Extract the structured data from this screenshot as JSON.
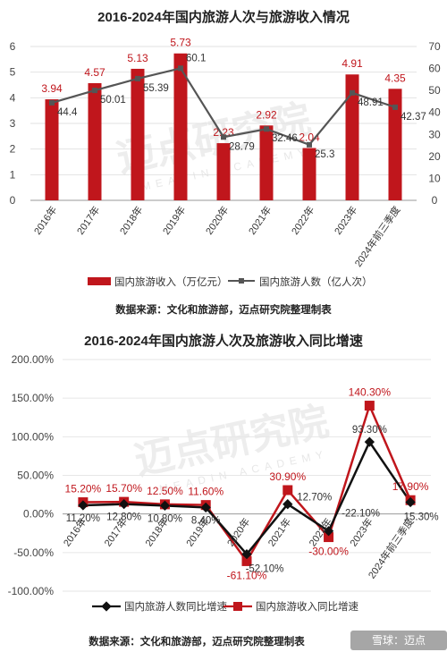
{
  "chart_data": [
    {
      "type": "bar",
      "title": "2016-2024年国内旅游人次与旅游收入情况",
      "categories": [
        "2016年",
        "2017年",
        "2018年",
        "2019年",
        "2020年",
        "2021年",
        "2022年",
        "2023年",
        "2024年前三季度"
      ],
      "series": [
        {
          "name": "国内旅游收入（万亿元）",
          "type": "bar",
          "axis": "left",
          "color": "#c0161c",
          "values": [
            3.94,
            4.57,
            5.13,
            5.73,
            2.23,
            2.92,
            2.04,
            4.91,
            4.35
          ],
          "labels": [
            "3.94",
            "4.57",
            "5.13",
            "5.73",
            "2.23",
            "2.92",
            "2.04",
            "4.91",
            "4.35"
          ]
        },
        {
          "name": "国内旅游人数（亿人次）",
          "type": "line",
          "axis": "right",
          "color": "#555555",
          "values": [
            44.4,
            50.01,
            55.39,
            60.1,
            28.79,
            32.46,
            25.3,
            48.91,
            42.37
          ],
          "labels": [
            "44.4",
            "50.01",
            "55.39",
            "60.1",
            "28.79",
            "32.46",
            "25.3",
            "48.91",
            "42.37"
          ]
        }
      ],
      "ylim_left": [
        0,
        6
      ],
      "yticks_left": [
        "0",
        "1",
        "2",
        "3",
        "4",
        "5",
        "6"
      ],
      "ylim_right": [
        0,
        70
      ],
      "yticks_right": [
        "0",
        "10",
        "20",
        "30",
        "40",
        "50",
        "60",
        "70"
      ],
      "legend": "bottom",
      "source": "数据来源：文化和旅游部，迈点研究院整理制表"
    },
    {
      "type": "line",
      "title": "2016-2024年国内旅游人次及旅游收入同比增速",
      "categories": [
        "2016年",
        "2017年",
        "2018年",
        "2019年",
        "2020年",
        "2021年",
        "2022年",
        "2023年",
        "2024年前三季度"
      ],
      "series": [
        {
          "name": "国内旅游人数同比增速",
          "color": "#111111",
          "marker": "diamond",
          "values": [
            11.2,
            12.8,
            10.8,
            8.4,
            -52.1,
            12.7,
            -22.1,
            93.3,
            15.3
          ],
          "labels": [
            "11.20%",
            "12.80%",
            "10.80%",
            "8.40%",
            "-52.10%",
            "12.70%",
            "-22.10%",
            "93.30%",
            "15.30%"
          ]
        },
        {
          "name": "国内旅游收入同比增速",
          "color": "#c0161c",
          "marker": "square",
          "values": [
            15.2,
            15.7,
            12.5,
            11.6,
            -61.1,
            30.9,
            -30.0,
            140.3,
            17.9
          ],
          "labels": [
            "15.20%",
            "15.70%",
            "12.50%",
            "11.60%",
            "-61.10%",
            "30.90%",
            "-30.00%",
            "140.30%",
            "17.90%"
          ]
        }
      ],
      "ylim": [
        -100,
        200
      ],
      "yticks": [
        "200.00%",
        "150.00%",
        "100.00%",
        "50.00%",
        "0.00%",
        "-50.00%",
        "-100.00%"
      ],
      "legend": "bottom",
      "source": "数据来源：文化和旅游部，迈点研究院整理制表"
    }
  ],
  "watermark": {
    "text": "迈点研究院",
    "sub": "MEADIN ACADEMY"
  },
  "corner_badge": "雪球：迈点"
}
